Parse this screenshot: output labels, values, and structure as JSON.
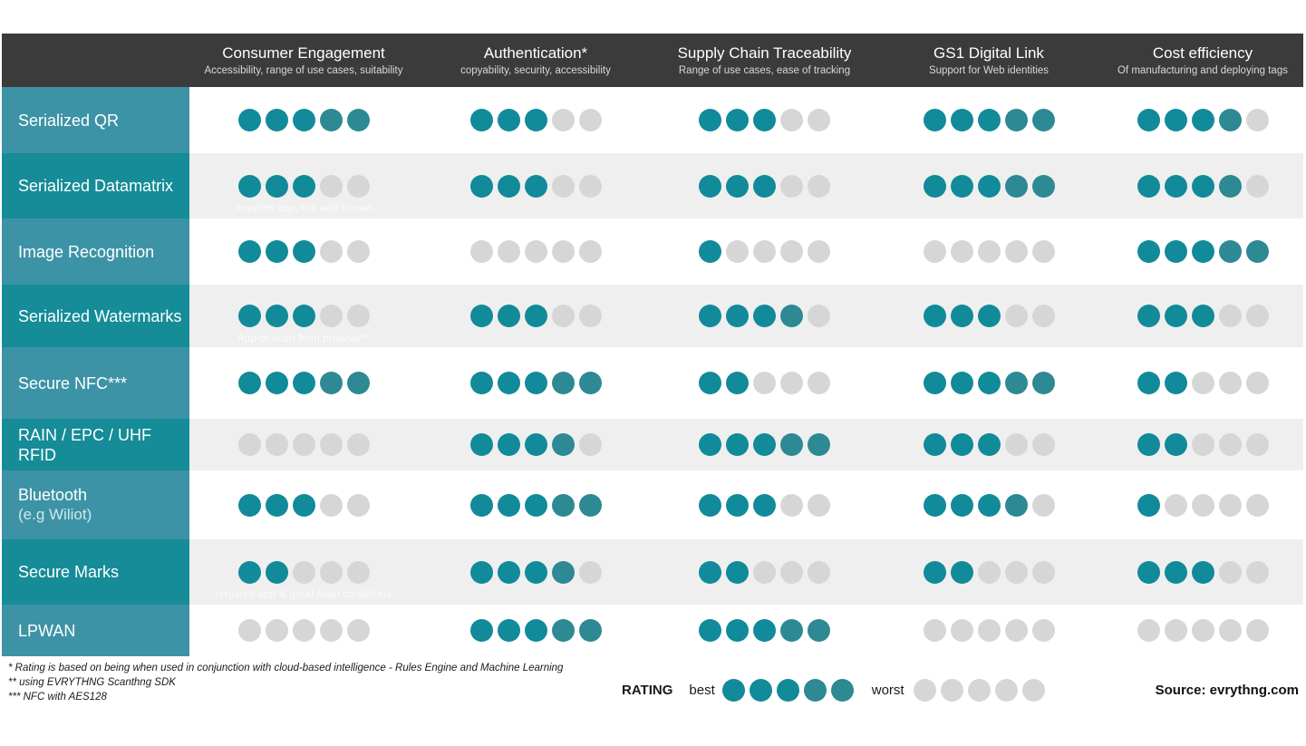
{
  "colors": {
    "header_bg": "#3b3b3b",
    "label_bg_a": "#3d93a6",
    "label_bg_b": "#158c98",
    "row_bg_even": "#ffffff",
    "row_bg_odd": "#efefef",
    "dot_teal": "#118a99",
    "dot_teal_dark": "#2d8993",
    "dot_empty": "#d6d6d6"
  },
  "chart_data": {
    "type": "table",
    "title": "",
    "scale_max": 5,
    "columns": [
      {
        "title": "Consumer Engagement",
        "subtitle": "Accessibility, range of use cases, suitability"
      },
      {
        "title": "Authentication*",
        "subtitle": "copyability, security, accessibility"
      },
      {
        "title": "Supply Chain Traceability",
        "subtitle": "Range of use cases, ease of tracking"
      },
      {
        "title": "GS1 Digital Link",
        "subtitle": "Support for Web identities"
      },
      {
        "title": "Cost efficiency",
        "subtitle": "Of manufacturing and deploying tags"
      }
    ],
    "rows": [
      {
        "label": "Serialized QR",
        "sublabel": "",
        "note": "",
        "ratings": [
          5,
          3,
          3,
          5,
          4
        ]
      },
      {
        "label": "Serialized Datamatrix",
        "sublabel": "",
        "note": "requires app, not well known",
        "ratings": [
          3,
          3,
          3,
          5,
          4
        ]
      },
      {
        "label": "Image Recognition",
        "sublabel": "",
        "note": "",
        "ratings": [
          3,
          0,
          1,
          0,
          5
        ]
      },
      {
        "label": "Serialized Watermarks",
        "sublabel": "",
        "note": "App or scan from browser**",
        "ratings": [
          3,
          3,
          4,
          3,
          3
        ]
      },
      {
        "label": "Secure NFC***",
        "sublabel": "",
        "note": "",
        "ratings": [
          5,
          5,
          2,
          5,
          2
        ]
      },
      {
        "label": "RAIN / EPC / UHF RFID",
        "sublabel": "",
        "note": "",
        "ratings": [
          0,
          4,
          5,
          3,
          2
        ]
      },
      {
        "label": "Bluetooth",
        "sublabel": "(e.g Wiliot)",
        "note": "",
        "ratings": [
          3,
          5,
          3,
          4,
          1
        ]
      },
      {
        "label": "Secure Marks",
        "sublabel": "",
        "note": "requires app & good scan conditions",
        "ratings": [
          2,
          4,
          2,
          2,
          3
        ]
      },
      {
        "label": "LPWAN",
        "sublabel": "",
        "note": "",
        "ratings": [
          0,
          5,
          5,
          0,
          0
        ]
      }
    ]
  },
  "footnotes": [
    "* Rating is based on being when used in conjunction with cloud-based intelligence - Rules Engine and Machine Learning",
    "** using EVRYTHNG Scanthng SDK",
    "*** NFC with AES128"
  ],
  "legend": {
    "title": "RATING",
    "best_label": "best",
    "worst_label": "worst",
    "best_value": 5,
    "worst_value": 0
  },
  "source": "Source: evrythng.com"
}
